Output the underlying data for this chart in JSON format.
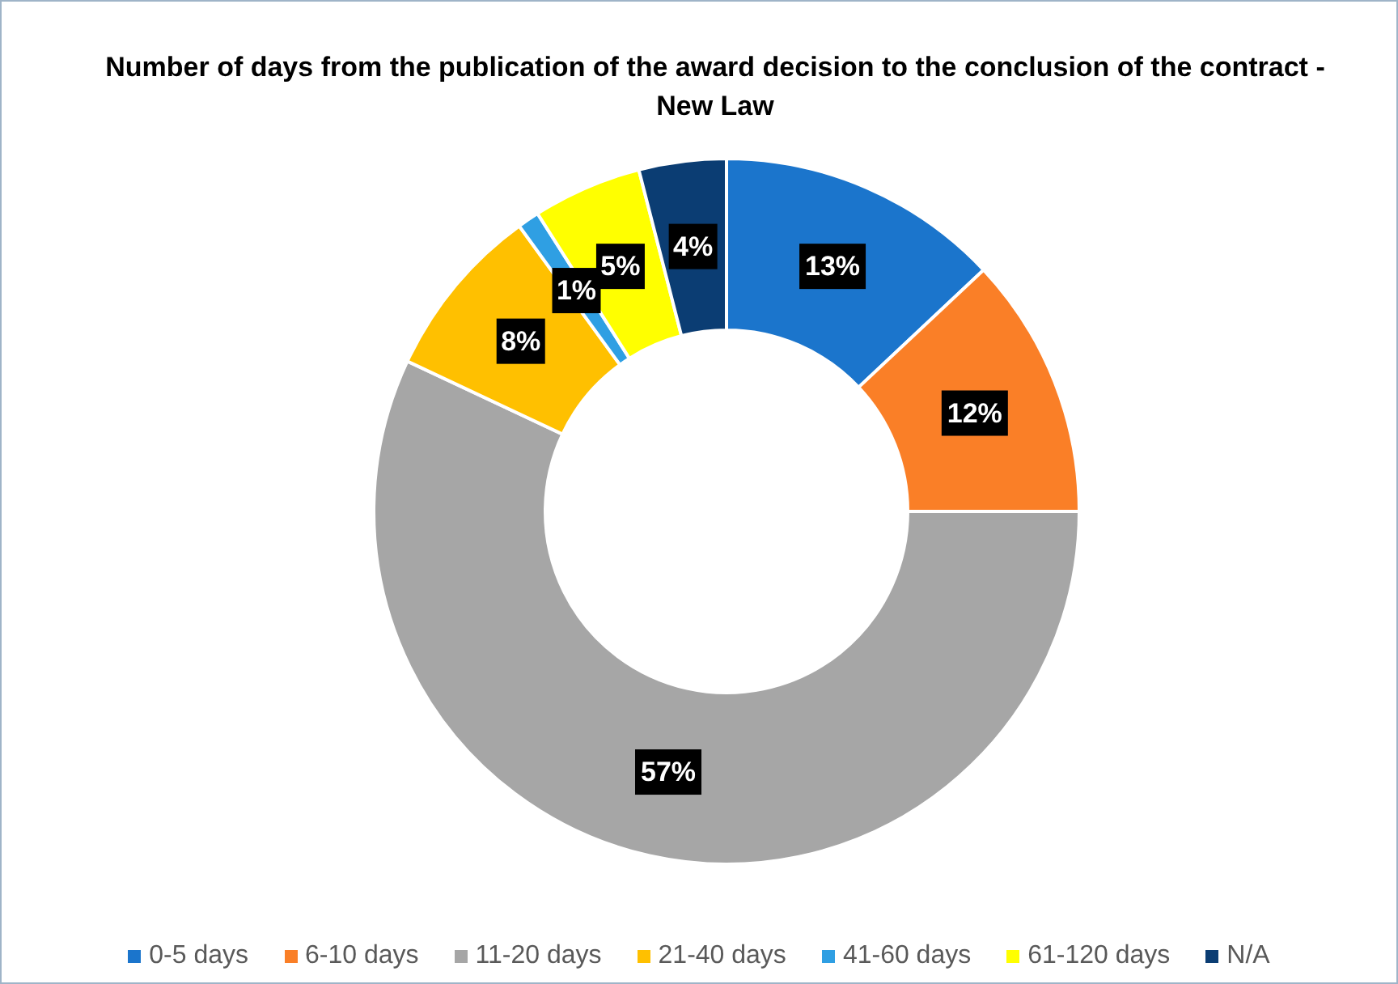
{
  "chart_data": {
    "type": "donut",
    "title": "Number of days from the publication of the award decision to the conclusion of the contract - New Law",
    "categories": [
      "0-5 days",
      "6-10 days",
      "11-20 days",
      "21-40 days",
      "41-60 days",
      "61-120 days",
      "N/A"
    ],
    "values": [
      13,
      12,
      57,
      8,
      1,
      5,
      4
    ],
    "colors": [
      "#1b75cc",
      "#fa7f27",
      "#a6a6a6",
      "#ffc000",
      "#2f9fe3",
      "#ffff00",
      "#0b3d73"
    ],
    "value_labels": [
      "13%",
      "12%",
      "57%",
      "8%",
      "1%",
      "5%",
      "4%"
    ],
    "legend": "bottom"
  }
}
